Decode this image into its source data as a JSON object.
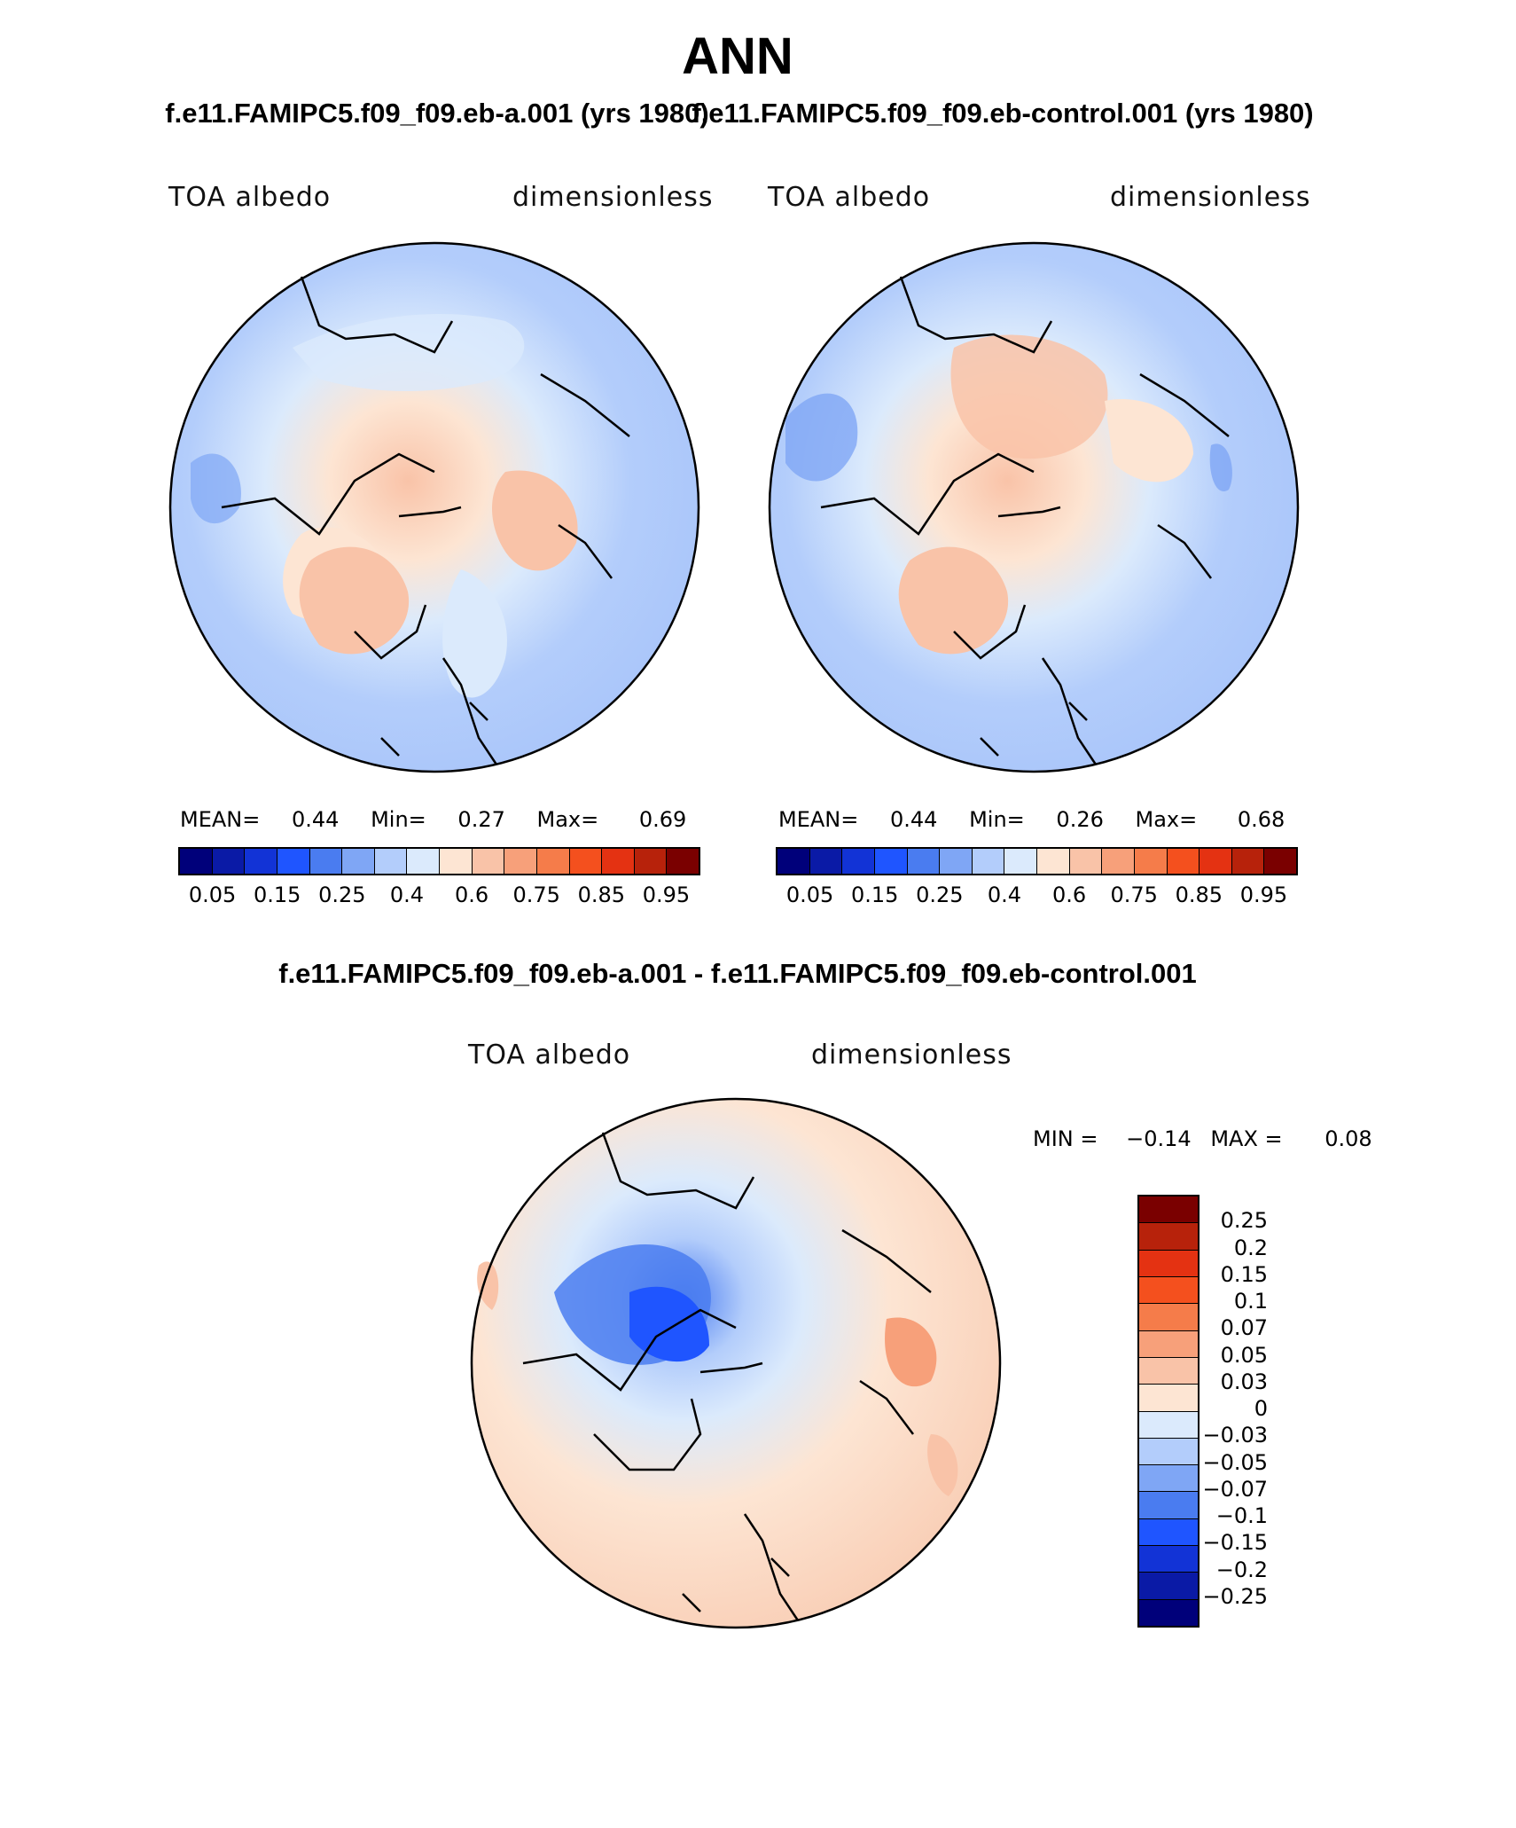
{
  "page_title": "ANN",
  "panels": {
    "left": {
      "case_title": "f.e11.FAMIPC5.f09_f09.eb-a.001 (yrs 1980)",
      "variable": "TOA albedo",
      "units": "dimensionless",
      "stats": {
        "mean_label": "MEAN=",
        "mean": "0.44",
        "min_label": "Min=",
        "min": "0.27",
        "max_label": "Max=",
        "max": "0.69"
      }
    },
    "right": {
      "case_title": "f.e11.FAMIPC5.f09_f09.eb-control.001 (yrs 1980)",
      "variable": "TOA albedo",
      "units": "dimensionless",
      "stats": {
        "mean_label": "MEAN=",
        "mean": "0.44",
        "min_label": "Min=",
        "min": "0.26",
        "max_label": "Max=",
        "max": "0.68"
      }
    },
    "diff": {
      "title": "f.e11.FAMIPC5.f09_f09.eb-a.001 - f.e11.FAMIPC5.f09_f09.eb-control.001",
      "variable": "TOA albedo",
      "units": "dimensionless",
      "stats": {
        "min_label": "MIN =",
        "min": "−0.14",
        "max_label": "MAX =",
        "max": "0.08"
      }
    }
  },
  "colorbar_abs": {
    "colors": [
      "#00007a",
      "#0a1aa6",
      "#1233d6",
      "#1f55ff",
      "#4a7cf0",
      "#7fa6f5",
      "#b3cdfb",
      "#dbeafc",
      "#fde5d3",
      "#f9c3a8",
      "#f7a07a",
      "#f57c4a",
      "#f4501e",
      "#e43212",
      "#b7220b",
      "#7a0000"
    ],
    "labels": [
      "0.05",
      "0.15",
      "0.25",
      "0.4",
      "0.6",
      "0.75",
      "0.85",
      "0.95"
    ]
  },
  "colorbar_diff": {
    "colors_top_to_bottom": [
      "#7a0000",
      "#b7220b",
      "#e43212",
      "#f4501e",
      "#f57c4a",
      "#f7a07a",
      "#f9c3a8",
      "#fde5d3",
      "#dbeafc",
      "#b3cdfb",
      "#7fa6f5",
      "#4a7cf0",
      "#1f55ff",
      "#1233d6",
      "#0a1aa6",
      "#00007a"
    ],
    "labels_top_to_bottom": [
      "0.25",
      "0.2",
      "0.15",
      "0.1",
      "0.07",
      "0.05",
      "0.03",
      "0",
      "−0.03",
      "−0.05",
      "−0.07",
      "−0.1",
      "−0.15",
      "−0.2",
      "−0.25"
    ]
  },
  "chart_data": [
    {
      "type": "heatmap",
      "projection": "north polar stereographic",
      "title": "f.e11.FAMIPC5.f09_f09.eb-a.001 (yrs 1980)",
      "field": "TOA albedo",
      "units": "dimensionless",
      "mean": 0.44,
      "min": 0.27,
      "max": 0.69,
      "levels": [
        0.05,
        0.1,
        0.15,
        0.2,
        0.25,
        0.3,
        0.4,
        0.5,
        0.6,
        0.65,
        0.7,
        0.75,
        0.8,
        0.85,
        0.9,
        0.95
      ]
    },
    {
      "type": "heatmap",
      "projection": "north polar stereographic",
      "title": "f.e11.FAMIPC5.f09_f09.eb-control.001 (yrs 1980)",
      "field": "TOA albedo",
      "units": "dimensionless",
      "mean": 0.44,
      "min": 0.26,
      "max": 0.68,
      "levels": [
        0.05,
        0.1,
        0.15,
        0.2,
        0.25,
        0.3,
        0.4,
        0.5,
        0.6,
        0.65,
        0.7,
        0.75,
        0.8,
        0.85,
        0.9,
        0.95
      ]
    },
    {
      "type": "heatmap",
      "projection": "north polar stereographic",
      "title": "f.e11.FAMIPC5.f09_f09.eb-a.001 - f.e11.FAMIPC5.f09_f09.eb-control.001",
      "field": "TOA albedo",
      "units": "dimensionless",
      "min": -0.14,
      "max": 0.08,
      "levels": [
        -0.25,
        -0.2,
        -0.15,
        -0.1,
        -0.07,
        -0.05,
        -0.03,
        0,
        0.03,
        0.05,
        0.07,
        0.1,
        0.15,
        0.2,
        0.25
      ]
    }
  ]
}
